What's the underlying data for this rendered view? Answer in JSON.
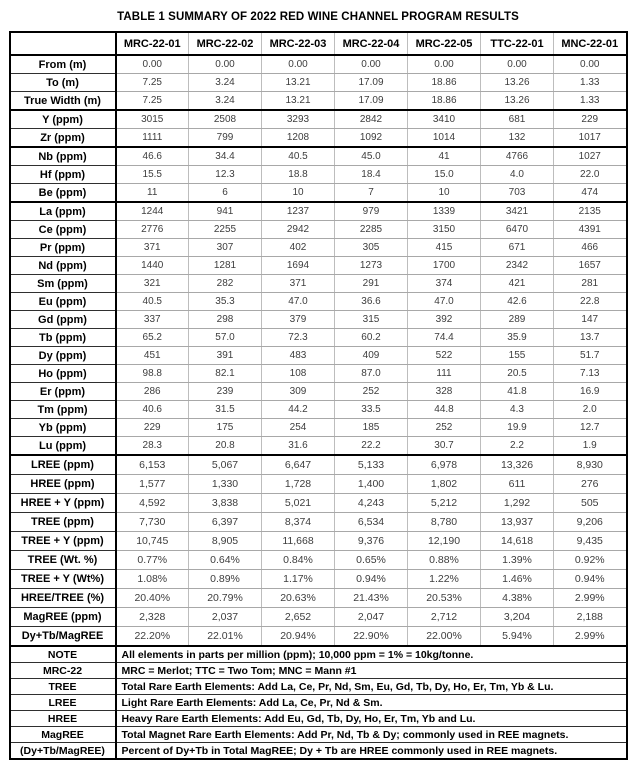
{
  "title": "TABLE 1 SUMMARY OF 2022 RED WINE CHANNEL PROGRAM RESULTS",
  "table": {
    "corner_label": "",
    "columns": [
      "MRC-22-01",
      "MRC-22-02",
      "MRC-22-03",
      "MRC-22-04",
      "MRC-22-05",
      "TTC-22-01",
      "MNC-22-01"
    ],
    "sections": [
      {
        "name": "interval",
        "rows": [
          {
            "label": "From (m)",
            "values": [
              "0.00",
              "0.00",
              "0.00",
              "0.00",
              "0.00",
              "0.00",
              "0.00"
            ]
          },
          {
            "label": "To (m)",
            "values": [
              "7.25",
              "3.24",
              "13.21",
              "17.09",
              "18.86",
              "13.26",
              "1.33"
            ]
          },
          {
            "label": "True Width (m)",
            "values": [
              "7.25",
              "3.24",
              "13.21",
              "17.09",
              "18.86",
              "13.26",
              "1.33"
            ]
          }
        ]
      },
      {
        "name": "yttrium-zirconium",
        "rows": [
          {
            "label": "Y (ppm)",
            "values": [
              "3015",
              "2508",
              "3293",
              "2842",
              "3410",
              "681",
              "229"
            ]
          },
          {
            "label": "Zr (ppm)",
            "values": [
              "1111",
              "799",
              "1208",
              "1092",
              "1014",
              "132",
              "1017"
            ]
          }
        ]
      },
      {
        "name": "niobium-hafnium-beryllium",
        "rows": [
          {
            "label": "Nb (ppm)",
            "values": [
              "46.6",
              "34.4",
              "40.5",
              "45.0",
              "41",
              "4766",
              "1027"
            ]
          },
          {
            "label": "Hf (ppm)",
            "values": [
              "15.5",
              "12.3",
              "18.8",
              "18.4",
              "15.0",
              "4.0",
              "22.0"
            ]
          },
          {
            "label": "Be (ppm)",
            "values": [
              "11",
              "6",
              "10",
              "7",
              "10",
              "703",
              "474"
            ]
          }
        ]
      },
      {
        "name": "rare-earth-elements",
        "rows": [
          {
            "label": "La (ppm)",
            "values": [
              "1244",
              "941",
              "1237",
              "979",
              "1339",
              "3421",
              "2135"
            ]
          },
          {
            "label": "Ce (ppm)",
            "values": [
              "2776",
              "2255",
              "2942",
              "2285",
              "3150",
              "6470",
              "4391"
            ]
          },
          {
            "label": "Pr (ppm)",
            "values": [
              "371",
              "307",
              "402",
              "305",
              "415",
              "671",
              "466"
            ]
          },
          {
            "label": "Nd (ppm)",
            "values": [
              "1440",
              "1281",
              "1694",
              "1273",
              "1700",
              "2342",
              "1657"
            ]
          },
          {
            "label": "Sm (ppm)",
            "values": [
              "321",
              "282",
              "371",
              "291",
              "374",
              "421",
              "281"
            ]
          },
          {
            "label": "Eu (ppm)",
            "values": [
              "40.5",
              "35.3",
              "47.0",
              "36.6",
              "47.0",
              "42.6",
              "22.8"
            ]
          },
          {
            "label": "Gd (ppm)",
            "values": [
              "337",
              "298",
              "379",
              "315",
              "392",
              "289",
              "147"
            ]
          },
          {
            "label": "Tb (ppm)",
            "values": [
              "65.2",
              "57.0",
              "72.3",
              "60.2",
              "74.4",
              "35.9",
              "13.7"
            ]
          },
          {
            "label": "Dy (ppm)",
            "values": [
              "451",
              "391",
              "483",
              "409",
              "522",
              "155",
              "51.7"
            ]
          },
          {
            "label": "Ho (ppm)",
            "values": [
              "98.8",
              "82.1",
              "108",
              "87.0",
              "111",
              "20.5",
              "7.13"
            ]
          },
          {
            "label": "Er (ppm)",
            "values": [
              "286",
              "239",
              "309",
              "252",
              "328",
              "41.8",
              "16.9"
            ]
          },
          {
            "label": "Tm (ppm)",
            "values": [
              "40.6",
              "31.5",
              "44.2",
              "33.5",
              "44.8",
              "4.3",
              "2.0"
            ]
          },
          {
            "label": "Yb (ppm)",
            "values": [
              "229",
              "175",
              "254",
              "185",
              "252",
              "19.9",
              "12.7"
            ]
          },
          {
            "label": "Lu (ppm)",
            "values": [
              "28.3",
              "20.8",
              "31.6",
              "22.2",
              "30.7",
              "2.2",
              "1.9"
            ]
          }
        ]
      },
      {
        "name": "summary",
        "rows": [
          {
            "label": "LREE (ppm)",
            "values": [
              "6,153",
              "5,067",
              "6,647",
              "5,133",
              "6,978",
              "13,326",
              "8,930"
            ]
          },
          {
            "label": "HREE (ppm)",
            "values": [
              "1,577",
              "1,330",
              "1,728",
              "1,400",
              "1,802",
              "611",
              "276"
            ]
          },
          {
            "label": "HREE + Y (ppm)",
            "values": [
              "4,592",
              "3,838",
              "5,021",
              "4,243",
              "5,212",
              "1,292",
              "505"
            ]
          },
          {
            "label": "TREE (ppm)",
            "values": [
              "7,730",
              "6,397",
              "8,374",
              "6,534",
              "8,780",
              "13,937",
              "9,206"
            ]
          },
          {
            "label": "TREE + Y (ppm)",
            "values": [
              "10,745",
              "8,905",
              "11,668",
              "9,376",
              "12,190",
              "14,618",
              "9,435"
            ]
          },
          {
            "label": "TREE (Wt. %)",
            "values": [
              "0.77%",
              "0.64%",
              "0.84%",
              "0.65%",
              "0.88%",
              "1.39%",
              "0.92%"
            ]
          },
          {
            "label": "TREE + Y (Wt%)",
            "values": [
              "1.08%",
              "0.89%",
              "1.17%",
              "0.94%",
              "1.22%",
              "1.46%",
              "0.94%"
            ]
          },
          {
            "label": "HREE/TREE (%)",
            "values": [
              "20.40%",
              "20.79%",
              "20.63%",
              "21.43%",
              "20.53%",
              "4.38%",
              "2.99%"
            ]
          },
          {
            "label": "MagREE (ppm)",
            "values": [
              "2,328",
              "2,037",
              "2,652",
              "2,047",
              "2,712",
              "3,204",
              "2,188"
            ]
          },
          {
            "label": "Dy+Tb/MagREE",
            "values": [
              "22.20%",
              "22.01%",
              "20.94%",
              "22.90%",
              "22.00%",
              "5.94%",
              "2.99%"
            ]
          }
        ]
      }
    ]
  },
  "footnotes": [
    {
      "label": "NOTE",
      "text": "All elements in parts per million (ppm); 10,000 ppm = 1% = 10kg/tonne."
    },
    {
      "label": "MRC-22",
      "text": "MRC = Merlot; TTC = Two Tom; MNC = Mann #1"
    },
    {
      "label": "TREE",
      "text": "Total Rare Earth Elements: Add La, Ce, Pr, Nd, Sm, Eu, Gd, Tb, Dy, Ho, Er, Tm, Yb & Lu."
    },
    {
      "label": "LREE",
      "text": "Light Rare Earth Elements: Add La, Ce, Pr, Nd & Sm."
    },
    {
      "label": "HREE",
      "text": "Heavy Rare Earth Elements: Add Eu, Gd, Tb, Dy, Ho, Er, Tm, Yb and Lu."
    },
    {
      "label": "MagREE",
      "text": "Total Magnet Rare Earth Elements: Add Pr, Nd, Tb & Dy; commonly used in REE magnets."
    },
    {
      "label": "(Dy+Tb/MagREE)",
      "text": "Percent of Dy+Tb in Total MagREE; Dy + Tb are HREE commonly used in REE magnets."
    }
  ]
}
